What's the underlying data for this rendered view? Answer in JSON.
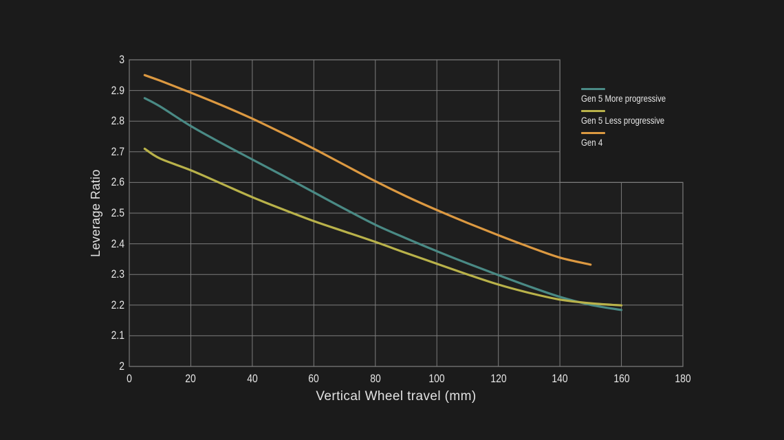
{
  "page": {
    "background": "#1B1B1B"
  },
  "chart_data": {
    "type": "line",
    "title": "",
    "xlabel": "Vertical Wheel travel (mm)",
    "ylabel": "Leverage Ratio",
    "xlim": [
      0,
      180
    ],
    "ylim": [
      2,
      3
    ],
    "xticks": [
      0,
      20,
      40,
      60,
      80,
      100,
      120,
      140,
      160,
      180
    ],
    "yticks": [
      2,
      2.1,
      2.2,
      2.3,
      2.4,
      2.5,
      2.6,
      2.7,
      2.8,
      2.9,
      3
    ],
    "grid": true,
    "legend_position": "right",
    "plot_area_step": {
      "x": 140,
      "y": 2.6
    },
    "colors": {
      "grid": "#7C7C7C",
      "plot_fill": "#1E1E1E",
      "tick_text": "#E6E6E6",
      "axis_text": "#E2E2E2"
    },
    "series": [
      {
        "name": "Gen 5 More progressive",
        "color": "#4A8A85",
        "x": [
          5,
          10,
          20,
          30,
          40,
          50,
          60,
          70,
          80,
          90,
          100,
          110,
          120,
          130,
          140,
          150,
          160
        ],
        "y": [
          2.875,
          2.848,
          2.784,
          2.728,
          2.675,
          2.622,
          2.568,
          2.514,
          2.462,
          2.418,
          2.376,
          2.336,
          2.298,
          2.261,
          2.227,
          2.201,
          2.184
        ]
      },
      {
        "name": "Gen 5 Less progressive",
        "color": "#B9B24A",
        "x": [
          5,
          10,
          20,
          30,
          40,
          50,
          60,
          70,
          80,
          90,
          100,
          110,
          120,
          130,
          140,
          150,
          160
        ],
        "y": [
          2.71,
          2.678,
          2.64,
          2.596,
          2.552,
          2.512,
          2.474,
          2.44,
          2.406,
          2.37,
          2.335,
          2.3,
          2.267,
          2.24,
          2.218,
          2.206,
          2.199
        ]
      },
      {
        "name": "Gen 4",
        "color": "#DC9941",
        "x": [
          5,
          10,
          20,
          30,
          40,
          50,
          60,
          70,
          80,
          90,
          100,
          110,
          120,
          130,
          140,
          150
        ],
        "y": [
          2.95,
          2.932,
          2.893,
          2.852,
          2.808,
          2.76,
          2.71,
          2.657,
          2.604,
          2.555,
          2.51,
          2.468,
          2.428,
          2.39,
          2.355,
          2.332
        ]
      }
    ]
  }
}
